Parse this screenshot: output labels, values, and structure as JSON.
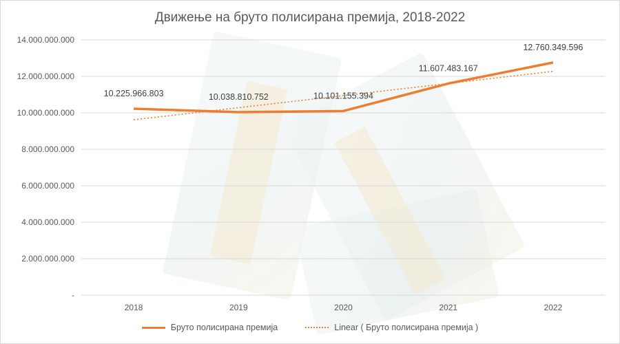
{
  "chart_data": {
    "type": "line",
    "title": "Движење на бруто полисирана премија, 2018-2022",
    "categories": [
      "2018",
      "2019",
      "2020",
      "2021",
      "2022"
    ],
    "series": [
      {
        "name": "Бруто полисирана премија",
        "values": [
          10225966803,
          10038810752,
          10101155394,
          11607483167,
          12760349596
        ],
        "labels": [
          "10.225.966.803",
          "10.038.810.752",
          "10.101.155.394",
          "11.607.483.167",
          "12.760.349.596"
        ]
      },
      {
        "name": "Linear ( Бруто полисирана премија )",
        "trendline": "linear"
      }
    ],
    "yticks": [
      "-",
      "2.000.000.000",
      "4.000.000.000",
      "6.000.000.000",
      "8.000.000.000",
      "10.000.000.000",
      "12.000.000.000",
      "14.000.000.000"
    ],
    "ylim": [
      0,
      14000000000
    ],
    "grid": true,
    "legend_position": "bottom",
    "colors": {
      "series": "#ed7d31",
      "grid": "#d9d9d9",
      "text": "#595959"
    }
  }
}
